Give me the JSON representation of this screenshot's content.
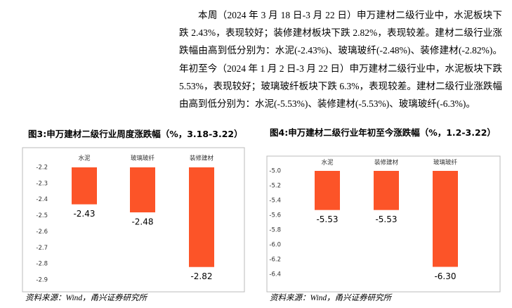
{
  "document": {
    "paragraph": "本周（2024 年 3 月 18 日-3 月 22 日）申万建材二级行业中，水泥板块下跌 2.43%，表现较好；装修建材板块下跌 2.82%，表现较差。建材二级行业涨跌幅由高到低分别为：水泥(-2.43%)、玻璃玻纤(-2.48%)、装修建材(-2.82%)。年初至今（2024 年 1 月 2 日-3 月 22 日）申万建材二级行业中，水泥板块下跌 5.53%，表现较好；玻璃玻纤板块下跌 6.3%，表现较差。建材二级行业涨跌幅由高到低分别为：水泥(-5.53%)、装修建材(-5.53%)、玻璃玻纤(-6.3%)。"
  },
  "chart_data": [
    {
      "type": "bar",
      "title": "图3:申万建材二级行业周度涨跌幅（%，3.18-3.22）",
      "source": "资料来源：Wind，甬兴证券研究所",
      "categories": [
        "水泥",
        "玻璃玻纤",
        "装修建材"
      ],
      "values": [
        -2.43,
        -2.48,
        -2.82
      ],
      "color": "#fc5428",
      "ylim": [
        -2.2,
        -2.9
      ],
      "yticks": [
        -2.2,
        -2.3,
        -2.4,
        -2.5,
        -2.6,
        -2.7,
        -2.8,
        -2.9
      ]
    },
    {
      "type": "bar",
      "title": "图4:申万建材二级行业年初至今涨跌幅（%，1.2-3.22）",
      "source": "资料来源：Wind，甬兴证券研究所",
      "categories": [
        "水泥",
        "装修建材",
        "玻璃玻纤"
      ],
      "values": [
        -5.53,
        -5.53,
        -6.3
      ],
      "value_labels": [
        "-5.53",
        "-5.53",
        "-6.30"
      ],
      "color": "#fc5428",
      "ylim": [
        -5.0,
        -6.4
      ],
      "yticks": [
        {
          "value": -5.0,
          "label": "-5.0"
        },
        -5.2,
        -5.4,
        -5.6,
        -5.8,
        {
          "value": -6.0,
          "label": "-6.0"
        },
        -6.2,
        -6.4
      ]
    }
  ]
}
